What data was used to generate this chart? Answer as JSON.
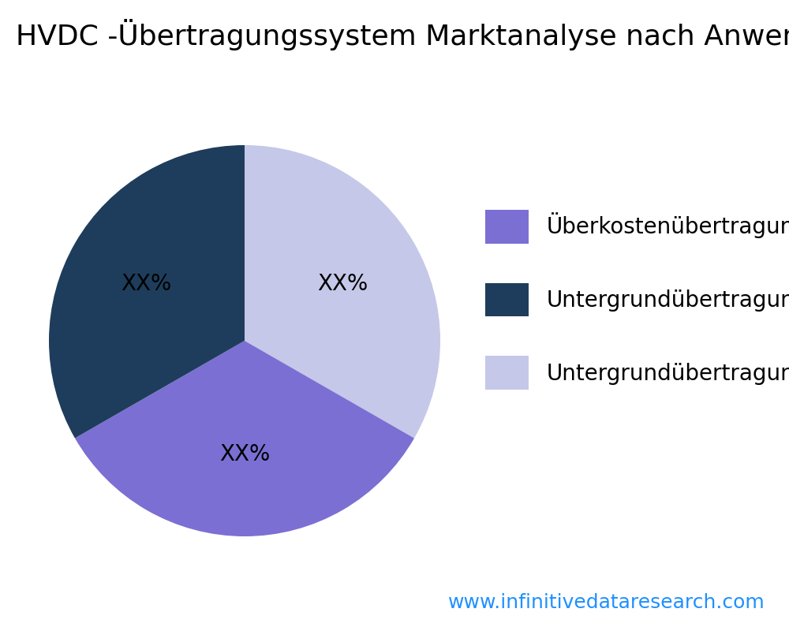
{
  "title": "HVDC -Übertragungssystem Marktanalyse nach Anwendung",
  "slices": [
    33.3,
    33.4,
    33.3
  ],
  "labels": [
    "XX%",
    "XX%",
    "XX%"
  ],
  "colors": [
    "#C5C8E8",
    "#7B6FD4",
    "#1E3D5C"
  ],
  "legend_labels": [
    "Überkostenübertragung",
    "Untergrundübertragung",
    "Untergrundübertragung"
  ],
  "legend_colors": [
    "#7B6FD4",
    "#1E3D5C",
    "#C5C8E8"
  ],
  "footer": "www.infinitivedataresearch.com",
  "footer_color": "#1E90FF",
  "title_fontsize": 26,
  "label_fontsize": 20,
  "legend_fontsize": 20,
  "footer_fontsize": 18,
  "background_color": "#ffffff",
  "startangle": 90
}
